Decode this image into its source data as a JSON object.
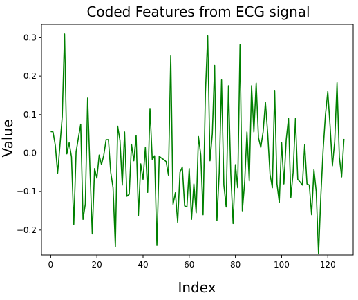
{
  "chart_data": {
    "type": "line",
    "title": "Coded Features from ECG signal",
    "xlabel": "Index",
    "ylabel": "Value",
    "xlim": [
      -4,
      131
    ],
    "ylim": [
      -0.265,
      0.335
    ],
    "xticks": [
      0,
      20,
      40,
      60,
      80,
      100,
      120
    ],
    "yticks": [
      -0.2,
      -0.1,
      0.0,
      0.1,
      0.2,
      0.3
    ],
    "xtick_labels": [
      "0",
      "20",
      "40",
      "60",
      "80",
      "100",
      "120"
    ],
    "ytick_labels": [
      "−0.2",
      "−0.1",
      "0.0",
      "0.1",
      "0.2",
      "0.3"
    ],
    "grid": false,
    "series": [
      {
        "color": "#008000",
        "y": [
          0.056,
          0.055,
          0.02,
          -0.052,
          0.02,
          0.095,
          0.31,
          -0.002,
          0.027,
          -0.01,
          -0.185,
          0.003,
          0.04,
          0.075,
          -0.172,
          -0.132,
          0.143,
          -0.04,
          -0.21,
          -0.04,
          -0.065,
          -0.005,
          -0.03,
          -0.005,
          0.035,
          0.035,
          -0.05,
          -0.09,
          -0.243,
          0.07,
          0.033,
          -0.083,
          0.055,
          -0.112,
          -0.107,
          0.023,
          -0.02,
          0.046,
          -0.162,
          -0.028,
          -0.068,
          0.015,
          -0.102,
          0.116,
          -0.017,
          -0.007,
          -0.24,
          -0.008,
          -0.013,
          -0.017,
          -0.022,
          -0.057,
          0.253,
          -0.133,
          -0.103,
          -0.18,
          -0.05,
          -0.036,
          -0.137,
          -0.14,
          -0.04,
          -0.172,
          -0.08,
          -0.155,
          0.043,
          -0.005,
          -0.16,
          0.155,
          0.305,
          -0.02,
          0.05,
          0.228,
          -0.175,
          -0.05,
          0.19,
          -0.083,
          -0.14,
          0.175,
          -0.055,
          -0.183,
          -0.03,
          -0.09,
          0.282,
          -0.15,
          -0.077,
          0.055,
          -0.072,
          0.175,
          0.055,
          0.182,
          0.04,
          0.015,
          0.055,
          0.132,
          0.05,
          -0.055,
          -0.09,
          0.163,
          -0.08,
          -0.128,
          0.027,
          -0.08,
          0.035,
          0.09,
          -0.115,
          -0.05,
          0.09,
          -0.068,
          -0.075,
          -0.083,
          0.022,
          -0.08,
          -0.083,
          -0.16,
          -0.043,
          -0.1,
          -0.262,
          -0.11,
          0.01,
          0.1,
          0.16,
          0.07,
          -0.033,
          0.03,
          0.183,
          -0.01,
          -0.062,
          0.037
        ]
      }
    ]
  }
}
